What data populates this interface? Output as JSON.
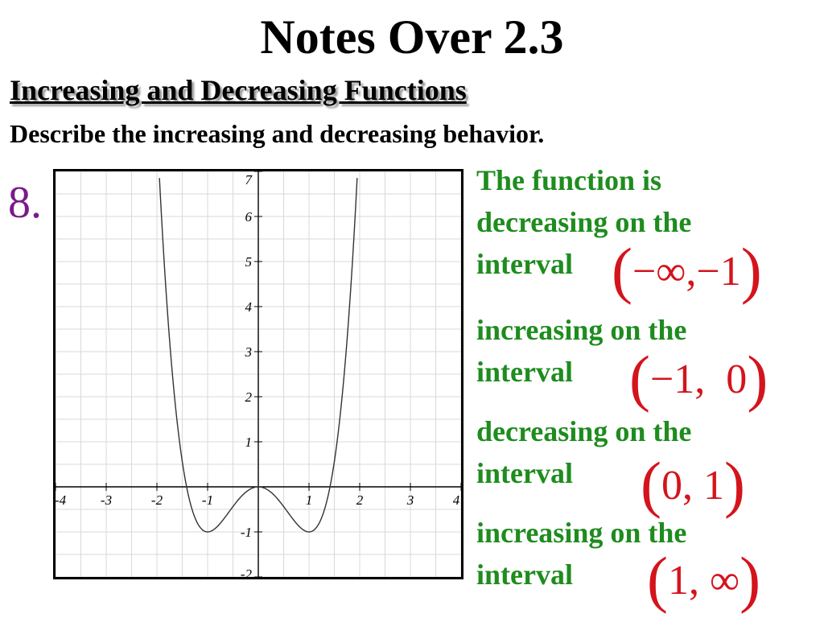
{
  "slide": {
    "title": "Notes Over 2.3",
    "subtitle": "Increasing and Decreasing Functions",
    "instruction": "Describe the increasing and decreasing behavior."
  },
  "problem": {
    "number": "8."
  },
  "answers": [
    {
      "line1": "The function is",
      "line2": "decreasing on the",
      "line3": "interval",
      "interval": "(−∞,−1)",
      "open": "(",
      "content": "−∞,−1",
      "close": ")"
    },
    {
      "line1": "increasing on the",
      "line2": "interval",
      "interval": "(−1, 0)",
      "open": "(",
      "content": "−1,  0",
      "close": ")"
    },
    {
      "line1": "decreasing on the",
      "line2": "interval",
      "interval": "(0, 1)",
      "open": "(",
      "content": "0, 1",
      "close": ")"
    },
    {
      "line1": "increasing on the",
      "line2": "interval",
      "interval": "(1, ∞)",
      "open": "(",
      "content": "1, ∞",
      "close": ")"
    }
  ],
  "colors": {
    "answer_text": "#1e8c1e",
    "interval_text": "#d4141c",
    "problem_number": "#7a1a8a"
  },
  "chart_data": {
    "type": "line",
    "function": "y = x^4 - 2x^2",
    "xlim": [
      -4,
      4
    ],
    "ylim": [
      -2,
      7
    ],
    "x_tick_labels": [
      "-4",
      "-3",
      "-2",
      "-1",
      "1",
      "2",
      "3",
      "4"
    ],
    "x_tick_values": [
      -4,
      -3,
      -2,
      -1,
      1,
      2,
      3,
      4
    ],
    "y_tick_labels": [
      "-2",
      "-1",
      "1",
      "2",
      "3",
      "4",
      "5",
      "6",
      "7"
    ],
    "y_tick_values": [
      -2,
      -1,
      1,
      2,
      3,
      4,
      5,
      6,
      7
    ],
    "grid": true,
    "points": [
      [
        -1.86,
        5.05
      ],
      [
        -1.8,
        4.02
      ],
      [
        -1.7,
        2.57
      ],
      [
        -1.6,
        1.43
      ],
      [
        -1.5,
        0.56
      ],
      [
        -1.4,
        -0.08
      ],
      [
        -1.3,
        -0.52
      ],
      [
        -1.2,
        -0.81
      ],
      [
        -1.1,
        -0.96
      ],
      [
        -1.0,
        -1.0
      ],
      [
        -0.9,
        -0.96
      ],
      [
        -0.8,
        -0.87
      ],
      [
        -0.7,
        -0.74
      ],
      [
        -0.6,
        -0.59
      ],
      [
        -0.5,
        -0.44
      ],
      [
        -0.4,
        -0.29
      ],
      [
        -0.3,
        -0.17
      ],
      [
        -0.2,
        -0.08
      ],
      [
        -0.1,
        -0.02
      ],
      [
        0.0,
        0.0
      ],
      [
        0.1,
        -0.02
      ],
      [
        0.2,
        -0.08
      ],
      [
        0.3,
        -0.17
      ],
      [
        0.4,
        -0.29
      ],
      [
        0.5,
        -0.44
      ],
      [
        0.6,
        -0.59
      ],
      [
        0.7,
        -0.74
      ],
      [
        0.8,
        -0.87
      ],
      [
        0.9,
        -0.96
      ],
      [
        1.0,
        -1.0
      ],
      [
        1.1,
        -0.96
      ],
      [
        1.2,
        -0.81
      ],
      [
        1.3,
        -0.52
      ],
      [
        1.4,
        -0.08
      ],
      [
        1.5,
        0.56
      ],
      [
        1.6,
        1.43
      ],
      [
        1.7,
        2.57
      ],
      [
        1.8,
        4.02
      ],
      [
        1.86,
        5.05
      ]
    ]
  }
}
